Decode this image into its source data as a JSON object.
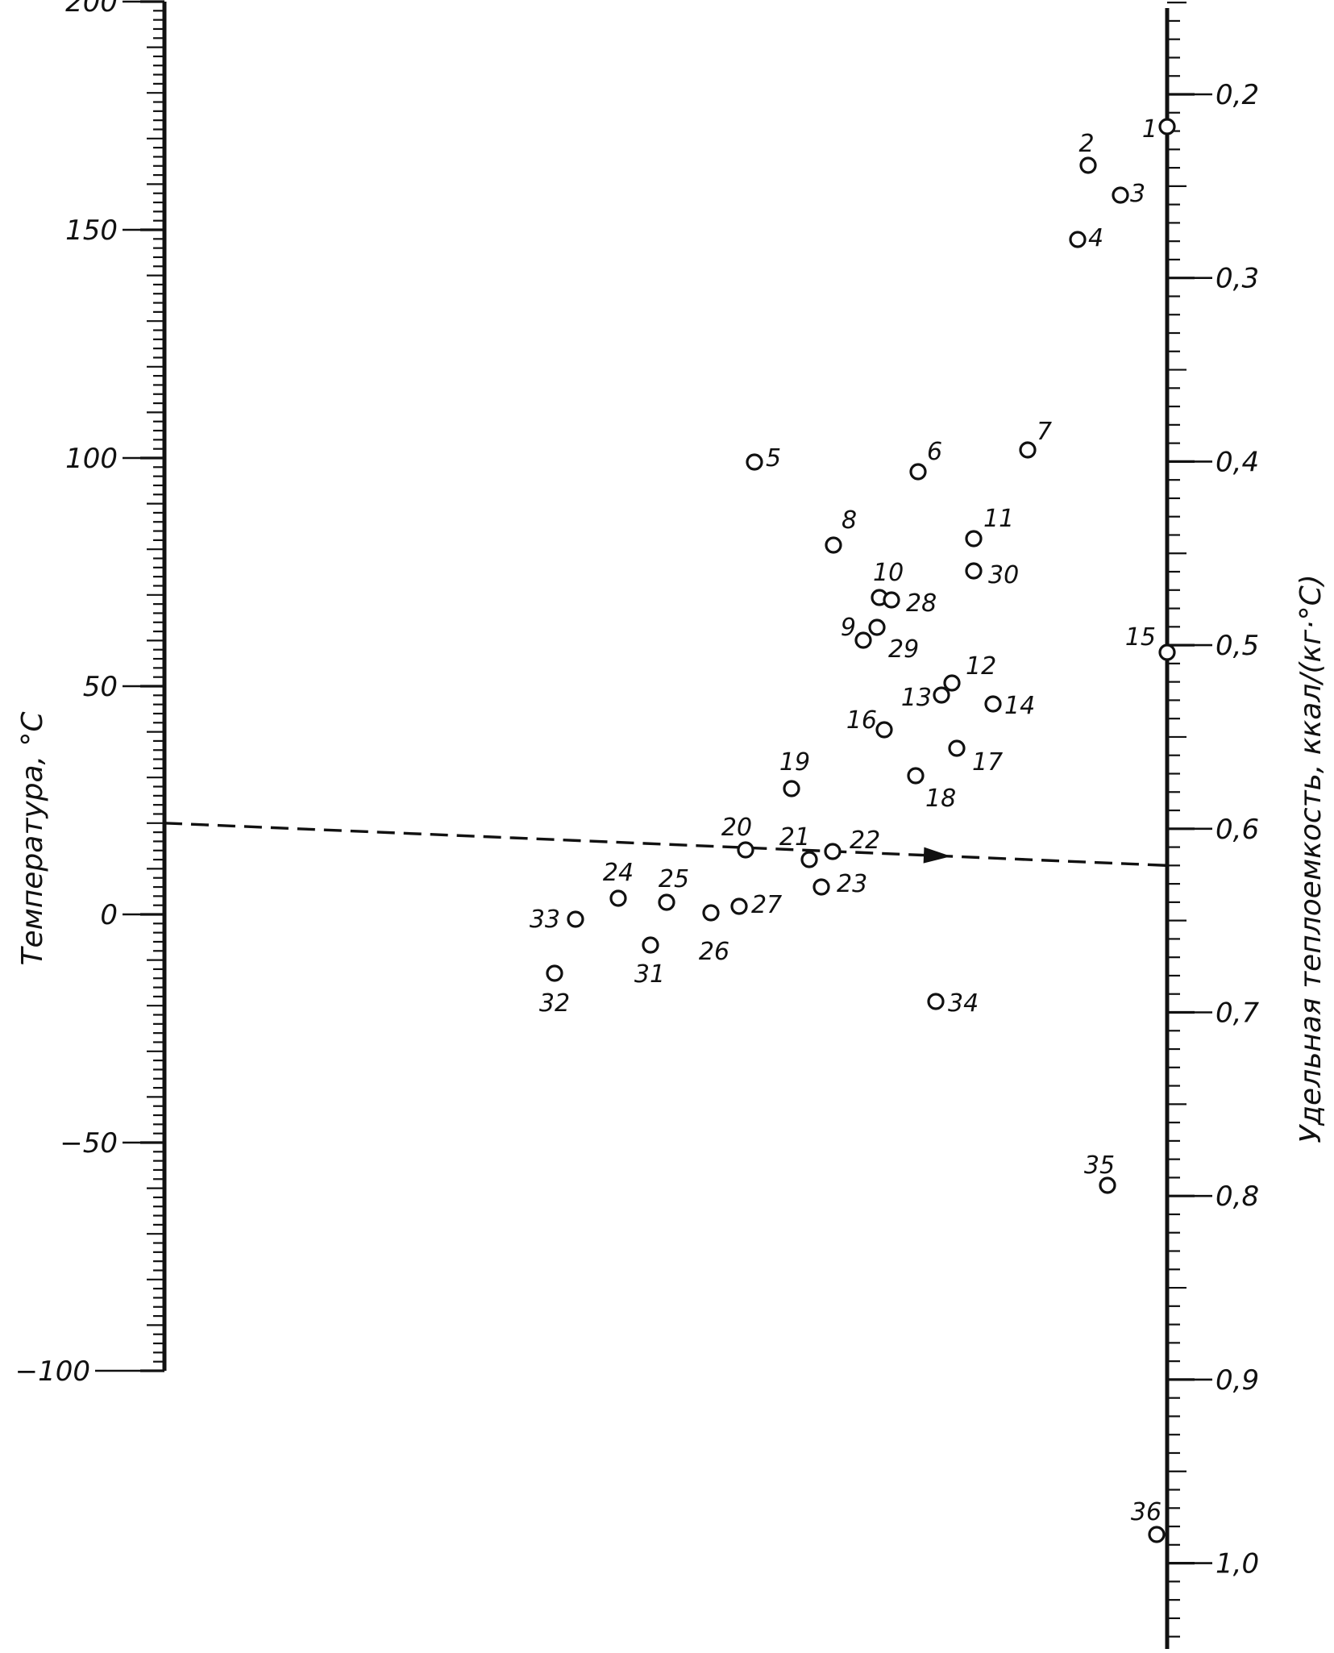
{
  "temperature_axis": {
    "title": "Температура, °С",
    "range": [
      -100,
      200
    ],
    "major_ticks": [
      {
        "value": 200,
        "label": "200"
      },
      {
        "value": 150,
        "label": "150"
      },
      {
        "value": 100,
        "label": "100"
      },
      {
        "value": 50,
        "label": "50"
      },
      {
        "value": 0,
        "label": "0"
      },
      {
        "value": -50,
        "label": "−50"
      },
      {
        "value": -100,
        "label": "−100"
      }
    ]
  },
  "heat_capacity_axis": {
    "title": "Удельная теплоемкость, ккал/(кг·°С)",
    "range": [
      0.15,
      1.05
    ],
    "major_ticks": [
      {
        "value": 0.2,
        "label": "0,2"
      },
      {
        "value": 0.3,
        "label": "0,3"
      },
      {
        "value": 0.4,
        "label": "0,4"
      },
      {
        "value": 0.5,
        "label": "0,5"
      },
      {
        "value": 0.6,
        "label": "0,6"
      },
      {
        "value": 0.7,
        "label": "0,7"
      },
      {
        "value": 0.8,
        "label": "0,8"
      },
      {
        "value": 0.9,
        "label": "0,9"
      },
      {
        "value": 1.0,
        "label": "1,0"
      }
    ]
  },
  "example_line": {
    "temperature": 20,
    "heat_capacity": 0.62
  },
  "points": [
    "1",
    "2",
    "3",
    "4",
    "5",
    "6",
    "7",
    "8",
    "9",
    "10",
    "11",
    "12",
    "13",
    "14",
    "15",
    "16",
    "17",
    "18",
    "19",
    "20",
    "21",
    "22",
    "23",
    "24",
    "25",
    "26",
    "27",
    "28",
    "29",
    "30",
    "31",
    "32",
    "33",
    "34",
    "35",
    "36"
  ]
}
